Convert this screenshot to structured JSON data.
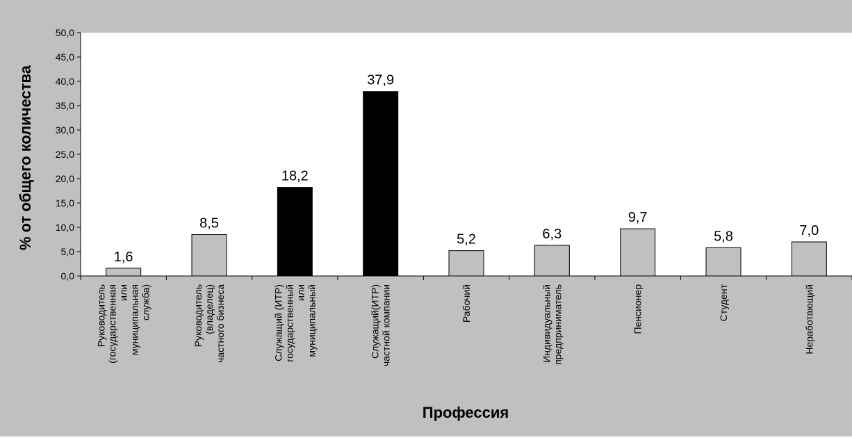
{
  "colors": {
    "background": "#c0c0c0",
    "plot_area": "#ffffff",
    "bar_default": "#c0c0c0",
    "bar_highlight": "#000000"
  },
  "chart_data": {
    "type": "bar",
    "title": "",
    "xlabel": "Профессия",
    "ylabel": "% от общего количества",
    "ylim": [
      0,
      50
    ],
    "y_ticks": [
      "0,0",
      "5,0",
      "10,0",
      "15,0",
      "20,0",
      "25,0",
      "30,0",
      "35,0",
      "40,0",
      "45,0",
      "50,0"
    ],
    "categories": [
      [
        "Руководитель",
        "(государственная",
        "или",
        "муниципальная",
        "служба)"
      ],
      [
        "Руководитель",
        "(владелец)",
        "частного бизнеса"
      ],
      [
        "Служащий (ИТР)",
        "государственный",
        "или",
        "муниципальный"
      ],
      [
        "Служащий(ИТР)",
        "частной компании"
      ],
      [
        "Рабочий"
      ],
      [
        "Индивидуальный",
        "предприниматель"
      ],
      [
        "Пенсионер"
      ],
      [
        "Студент"
      ],
      [
        "Неработающий"
      ]
    ],
    "values": [
      1.6,
      8.5,
      18.2,
      37.9,
      5.2,
      6.3,
      9.7,
      5.8,
      7.0
    ],
    "value_labels": [
      "1,6",
      "8,5",
      "18,2",
      "37,9",
      "5,2",
      "6,3",
      "9,7",
      "5,8",
      "7,0"
    ],
    "highlighted": [
      false,
      false,
      true,
      true,
      false,
      false,
      false,
      false,
      false
    ],
    "grid": false,
    "legend": "none"
  }
}
